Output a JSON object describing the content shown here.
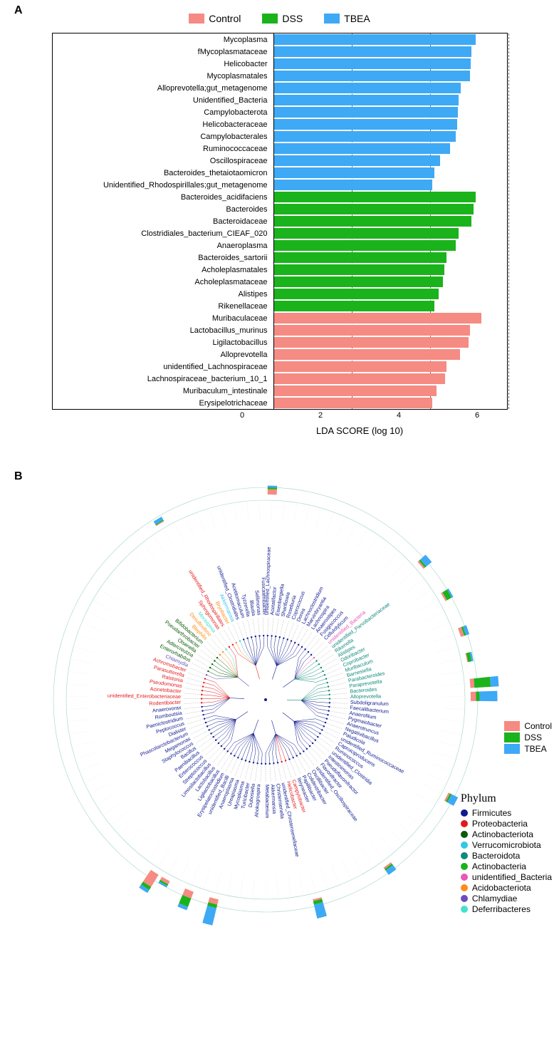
{
  "figure": {
    "panelA_label": "A",
    "panelB_label": "B"
  },
  "groups": {
    "control": {
      "label": "Control",
      "color": "#f58b83"
    },
    "dss": {
      "label": "DSS",
      "color": "#1bb31b"
    },
    "tbea": {
      "label": "TBEA",
      "color": "#3ea9f5"
    }
  },
  "panelA": {
    "x_label": "LDA SCORE (log 10)",
    "xlim": [
      0,
      6
    ],
    "xtick_step": 2,
    "gridline_color": "#666666",
    "border_color": "#000000",
    "bars": [
      {
        "label": "Mycoplasma",
        "value": 5.15,
        "group": "tbea"
      },
      {
        "label": "fMycoplasmataceae",
        "value": 5.05,
        "group": "tbea"
      },
      {
        "label": "Helicobacter",
        "value": 5.02,
        "group": "tbea"
      },
      {
        "label": "Mycoplasmatales",
        "value": 5.0,
        "group": "tbea"
      },
      {
        "label": "Alloprevotella;gut_metagenome",
        "value": 4.78,
        "group": "tbea"
      },
      {
        "label": "Unidentified_Bacteria",
        "value": 4.72,
        "group": "tbea"
      },
      {
        "label": "Campylobacterota",
        "value": 4.7,
        "group": "tbea"
      },
      {
        "label": "Helicobacteraceae",
        "value": 4.68,
        "group": "tbea"
      },
      {
        "label": "Campylobacterales",
        "value": 4.65,
        "group": "tbea"
      },
      {
        "label": "Ruminococcaceae",
        "value": 4.5,
        "group": "tbea"
      },
      {
        "label": "Oscillospiraceae",
        "value": 4.25,
        "group": "tbea"
      },
      {
        "label": "Bacteroides_thetaiotaomicron",
        "value": 4.1,
        "group": "tbea"
      },
      {
        "label": "Unidentified_Rhodospirillales;gut_metagenome",
        "value": 4.05,
        "group": "tbea"
      },
      {
        "label": "Bacteroides_acidifaciens",
        "value": 5.15,
        "group": "dss"
      },
      {
        "label": "Bacteroides",
        "value": 5.1,
        "group": "dss"
      },
      {
        "label": "Bacteroidaceae",
        "value": 5.05,
        "group": "dss"
      },
      {
        "label": "Clostridiales_bacterium_CIEAF_020",
        "value": 4.72,
        "group": "dss"
      },
      {
        "label": "Anaeroplasma",
        "value": 4.65,
        "group": "dss"
      },
      {
        "label": "Bacteroides_sartorii",
        "value": 4.4,
        "group": "dss"
      },
      {
        "label": "Acholeplasmatales",
        "value": 4.35,
        "group": "dss"
      },
      {
        "label": "Acholeplasmataceae",
        "value": 4.32,
        "group": "dss"
      },
      {
        "label": "Alistipes",
        "value": 4.2,
        "group": "dss"
      },
      {
        "label": "Rikenellaceae",
        "value": 4.1,
        "group": "dss"
      },
      {
        "label": "Muribaculaceae",
        "value": 5.3,
        "group": "control"
      },
      {
        "label": "Lactobacillus_murinus",
        "value": 5.0,
        "group": "control"
      },
      {
        "label": "Ligilactobacillus",
        "value": 4.98,
        "group": "control"
      },
      {
        "label": "Alloprevotella",
        "value": 4.75,
        "group": "control"
      },
      {
        "label": "unidentified_Lachnospiraceae",
        "value": 4.4,
        "group": "control"
      },
      {
        "label": "Lachnospiraceae_bacterium_10_1",
        "value": 4.38,
        "group": "control"
      },
      {
        "label": "Muribaculum_intestinale",
        "value": 4.15,
        "group": "control"
      },
      {
        "label": "Erysipelotrichaceae",
        "value": 4.05,
        "group": "control"
      }
    ]
  },
  "panelB": {
    "phylum_title": "Phylum",
    "phylum_colors": {
      "Firmicutes": "#0f1b8f",
      "Proteobacteria": "#e31a1c",
      "Actinobacteriota": "#0a5c0a",
      "Verrucomicrobiota": "#36c6e8",
      "Bacteroidota": "#0f8a7a",
      "Actinobacteria": "#1bb31b",
      "unidentified_Bacteria": "#e858b8",
      "Acidobacteriota": "#ff8c1a",
      "Chlamydiae": "#6a4fbf",
      "Deferribacteres": "#45e0d0"
    },
    "taxa": [
      {
        "name": "unidentified_Lachnospiraceae",
        "phylum": "Firmicutes",
        "bar": {
          "control": 3,
          "dss": 1,
          "tbea": 1
        }
      },
      {
        "name": "Acetatifactor",
        "phylum": "Firmicutes"
      },
      {
        "name": "Eisenbergiella",
        "phylum": "Firmicutes"
      },
      {
        "name": "Sharifiowia",
        "phylum": "Firmicutes"
      },
      {
        "name": "Roseburia",
        "phylum": "Firmicutes"
      },
      {
        "name": "Coprococcus",
        "phylum": "Firmicutes"
      },
      {
        "name": "Dorea",
        "phylum": "Firmicutes"
      },
      {
        "name": "Lachnoclostridium",
        "phylum": "Firmicutes"
      },
      {
        "name": "Marvinbryantia",
        "phylum": "Firmicutes"
      },
      {
        "name": "Lachnospira",
        "phylum": "Firmicutes"
      },
      {
        "name": "Anaerostipes",
        "phylum": "Firmicutes"
      },
      {
        "name": "Fusigiscoccus",
        "phylum": "Firmicutes"
      },
      {
        "name": "Cellulolyticum",
        "phylum": "Firmicutes"
      },
      {
        "name": "unidentified_Bacteria",
        "phylum": "unidentified_Bacteria",
        "bar": {
          "tbea": 4,
          "dss": 1,
          "control": 1
        }
      },
      {
        "name": "unidentified_Parvobacteriaceae",
        "phylum": "Bacteroidota"
      },
      {
        "name": "Rikenella",
        "phylum": "Bacteroidota"
      },
      {
        "name": "Alistipes",
        "phylum": "Bacteroidota",
        "bar": {
          "dss": 3,
          "tbea": 1,
          "control": 1
        }
      },
      {
        "name": "Odoribacter",
        "phylum": "Bacteroidota"
      },
      {
        "name": "Coprobacter",
        "phylum": "Bacteroidota"
      },
      {
        "name": "Muribaculum",
        "phylum": "Bacteroidota",
        "bar": {
          "control": 2,
          "tbea": 2,
          "dss": 1
        }
      },
      {
        "name": "Barnesiella",
        "phylum": "Bacteroidota"
      },
      {
        "name": "Parabacteroides",
        "phylum": "Bacteroidota",
        "bar": {
          "dss": 2,
          "tbea": 1,
          "control": 0.5
        }
      },
      {
        "name": "Paraprevotella",
        "phylum": "Bacteroidota"
      },
      {
        "name": "Bacteroides",
        "phylum": "Bacteroidota",
        "bar": {
          "dss": 12,
          "tbea": 6,
          "control": 3
        }
      },
      {
        "name": "Alloprevotella",
        "phylum": "Bacteroidota",
        "bar": {
          "control": 3,
          "tbea": 10,
          "dss": 2
        }
      },
      {
        "name": "Subdoligranulum",
        "phylum": "Firmicutes"
      },
      {
        "name": "Faecalibacterium",
        "phylum": "Firmicutes"
      },
      {
        "name": "Anaerofilum",
        "phylum": "Firmicutes"
      },
      {
        "name": "Pygmaiobacter",
        "phylum": "Firmicutes"
      },
      {
        "name": "Anaerotruncus",
        "phylum": "Firmicutes"
      },
      {
        "name": "Negativibacillus",
        "phylum": "Firmicutes"
      },
      {
        "name": "Paludicola",
        "phylum": "Firmicutes"
      },
      {
        "name": "unidentified_Ruminococcaceae",
        "phylum": "Firmicutes",
        "bar": {
          "tbea": 4,
          "dss": 1,
          "control": 1
        }
      },
      {
        "name": "Caproiciproducens",
        "phylum": "Firmicutes"
      },
      {
        "name": "Ruminococcus",
        "phylum": "Firmicutes"
      },
      {
        "name": "unidentified_Clostridia",
        "phylum": "Firmicutes"
      },
      {
        "name": "Intestinimonas",
        "phylum": "Firmicutes"
      },
      {
        "name": "Pseudoflavonifractor",
        "phylum": "Firmicutes"
      },
      {
        "name": "Flavonifractor",
        "phylum": "Firmicutes"
      },
      {
        "name": "unidentified_Oscillospiraceae",
        "phylum": "Firmicutes",
        "bar": {
          "tbea": 3,
          "dss": 1,
          "control": 1
        }
      },
      {
        "name": "Oscillibacter",
        "phylum": "Firmicutes"
      },
      {
        "name": "Colidextribacter",
        "phylum": "Firmicutes"
      },
      {
        "name": "Papillibacter",
        "phylum": "Firmicutes"
      },
      {
        "name": "Ileiyneacter",
        "phylum": "Firmicutes"
      },
      {
        "name": "Campylobacter",
        "phylum": "Proteobacteria"
      },
      {
        "name": "Helicobacter",
        "phylum": "Proteobacteria",
        "bar": {
          "tbea": 8,
          "dss": 2,
          "control": 1
        }
      },
      {
        "name": "unidentified_Christensenellaceae",
        "phylum": "Firmicutes"
      },
      {
        "name": "Christensenella",
        "phylum": "Firmicutes"
      },
      {
        "name": "Akkermansia",
        "phylum": "Firmicutes"
      },
      {
        "name": "Metabacterium",
        "phylum": "Firmicutes"
      },
      {
        "name": "Ahokogrospira",
        "phylum": "Firmicutes"
      },
      {
        "name": "Dubosiella",
        "phylum": "Firmicutes"
      },
      {
        "name": "Turicibacter",
        "phylum": "Firmicutes"
      },
      {
        "name": "Mycoplasma",
        "phylum": "Firmicutes",
        "bar": {
          "tbea": 10,
          "dss": 2,
          "control": 3
        }
      },
      {
        "name": "Ureaplasma",
        "phylum": "Firmicutes"
      },
      {
        "name": "Anaeroplasma",
        "phylum": "Firmicutes",
        "bar": {
          "dss": 5,
          "tbea": 2,
          "control": 4
        }
      },
      {
        "name": "unidentified_Bacilli",
        "phylum": "Firmicutes"
      },
      {
        "name": "Erysipelatoclostridium",
        "phylum": "Firmicutes",
        "bar": {
          "control": 2,
          "dss": 1,
          "tbea": 1
        }
      },
      {
        "name": "Ligilactobacillus",
        "phylum": "Firmicutes",
        "bar": {
          "control": 8,
          "dss": 2,
          "tbea": 2
        }
      },
      {
        "name": "Lactobacillus",
        "phylum": "Firmicutes"
      },
      {
        "name": "Limosilactobacillus",
        "phylum": "Firmicutes"
      },
      {
        "name": "Streptococcus",
        "phylum": "Firmicutes"
      },
      {
        "name": "Enterococcus",
        "phylum": "Firmicutes"
      },
      {
        "name": "Paenibacillus",
        "phylum": "Firmicutes"
      },
      {
        "name": "Bacillus",
        "phylum": "Firmicutes"
      },
      {
        "name": "Staphylococcus",
        "phylum": "Firmicutes"
      },
      {
        "name": "Megamonas",
        "phylum": "Firmicutes"
      },
      {
        "name": "Phascolarctobacterium",
        "phylum": "Firmicutes"
      },
      {
        "name": "Dialister",
        "phylum": "Firmicutes"
      },
      {
        "name": "Peptococcus",
        "phylum": "Firmicutes"
      },
      {
        "name": "Paeniclostridium",
        "phylum": "Firmicutes"
      },
      {
        "name": "Romboutsia",
        "phylum": "Firmicutes"
      },
      {
        "name": "Anaerovorax",
        "phylum": "Firmicutes"
      },
      {
        "name": "Rodentibacter",
        "phylum": "Proteobacteria"
      },
      {
        "name": "unidentified_Enterobacteriaceae",
        "phylum": "Proteobacteria"
      },
      {
        "name": "Acinetobacter",
        "phylum": "Proteobacteria"
      },
      {
        "name": "Pseudomonas",
        "phylum": "Proteobacteria"
      },
      {
        "name": "Ralstonia",
        "phylum": "Proteobacteria"
      },
      {
        "name": "Parasutterella",
        "phylum": "Proteobacteria"
      },
      {
        "name": "Achromobacter",
        "phylum": "Proteobacteria"
      },
      {
        "name": "Chlamydia",
        "phylum": "Chlamydiae"
      },
      {
        "name": "Enterorhabdus",
        "phylum": "Actinobacteriota"
      },
      {
        "name": "Adlercreutzia",
        "phylum": "Actinobacteriota"
      },
      {
        "name": "Olsenella",
        "phylum": "Actinobacteriota"
      },
      {
        "name": "Pseudarthrobacter",
        "phylum": "Actinobacteriota"
      },
      {
        "name": "Bifidobacterium",
        "phylum": "Actinobacteriota"
      },
      {
        "name": "Blephilis",
        "phylum": "Acidobacteriota"
      },
      {
        "name": "Desulfovibrio",
        "phylum": "Acidobacteriota"
      },
      {
        "name": "Moraxpinia",
        "phylum": "Deferribacteres"
      },
      {
        "name": "Sphingomonas",
        "phylum": "Proteobacteria"
      },
      {
        "name": "unidentified_Rhodospirillales",
        "phylum": "Proteobacteria",
        "bar": {
          "tbea": 2,
          "dss": 0.5,
          "control": 0.5
        }
      },
      {
        "name": "Bryobacter",
        "phylum": "Acidobacteriota"
      },
      {
        "name": "Akkermansia",
        "phylum": "Verrucomicrobiota"
      },
      {
        "name": "unidentified_Clostridiales",
        "phylum": "Firmicutes"
      },
      {
        "name": "Acetitomaculum",
        "phylum": "Firmicutes"
      },
      {
        "name": "Tyzzerella",
        "phylum": "Firmicutes"
      },
      {
        "name": "Blautia",
        "phylum": "Firmicutes"
      },
      {
        "name": "Sellimonas",
        "phylum": "Firmicutes"
      },
      {
        "name": "Fusicatenibacter",
        "phylum": "Firmicutes"
      }
    ]
  }
}
